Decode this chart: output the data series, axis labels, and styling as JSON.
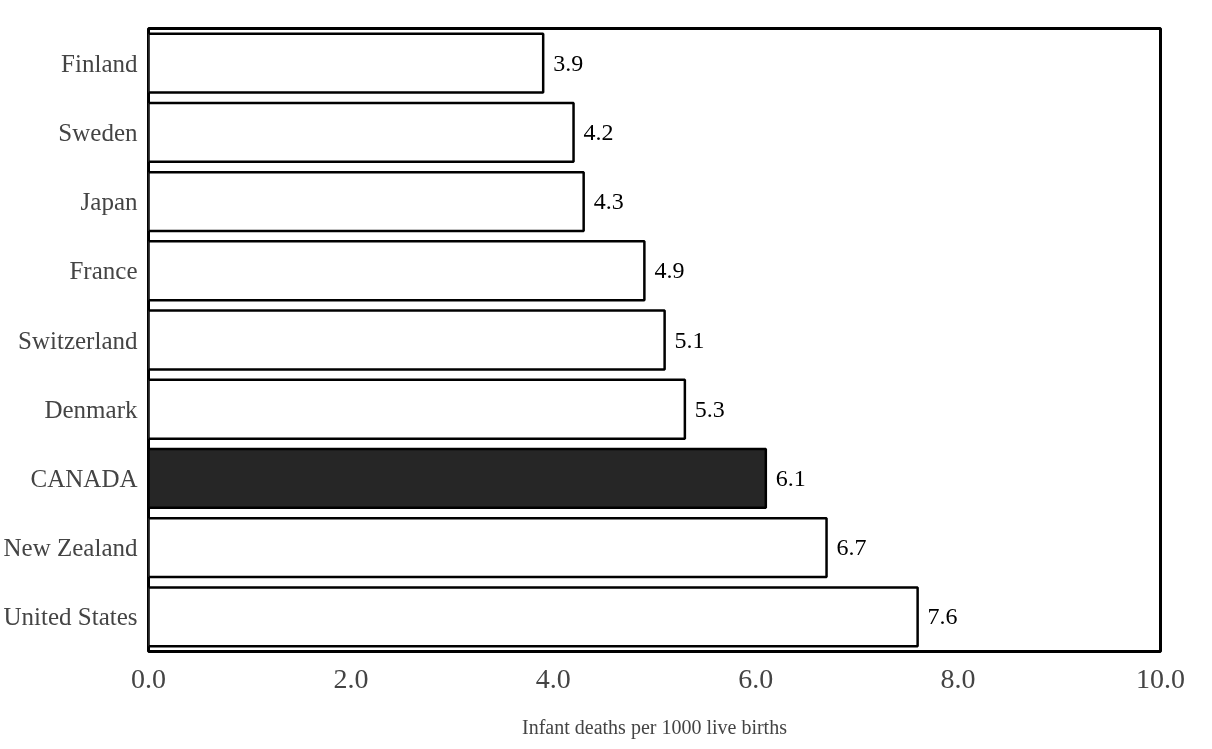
{
  "chart_data": {
    "type": "bar",
    "orientation": "horizontal",
    "xlabel": "Infant deaths per 1000 live births",
    "categories": [
      "Finland",
      "Sweden",
      "Japan",
      "France",
      "Switzerland",
      "Denmark",
      "CANADA",
      "New Zealand",
      "United States"
    ],
    "values": [
      3.9,
      4.2,
      4.3,
      4.9,
      5.1,
      5.3,
      6.1,
      6.7,
      7.6
    ],
    "colors": [
      "#ffffff",
      "#ffffff",
      "#ffffff",
      "#ffffff",
      "#ffffff",
      "#ffffff",
      "#262626",
      "#ffffff",
      "#ffffff"
    ],
    "xlim": [
      0,
      10
    ],
    "xticks": [
      {
        "value": 0,
        "label": "0.0"
      },
      {
        "value": 2,
        "label": "2.0"
      },
      {
        "value": 4,
        "label": "4.0"
      },
      {
        "value": 6,
        "label": "6.0"
      },
      {
        "value": 8,
        "label": "8.0"
      },
      {
        "value": 10,
        "label": "10.0"
      }
    ],
    "data_labels": true,
    "grid": false
  }
}
